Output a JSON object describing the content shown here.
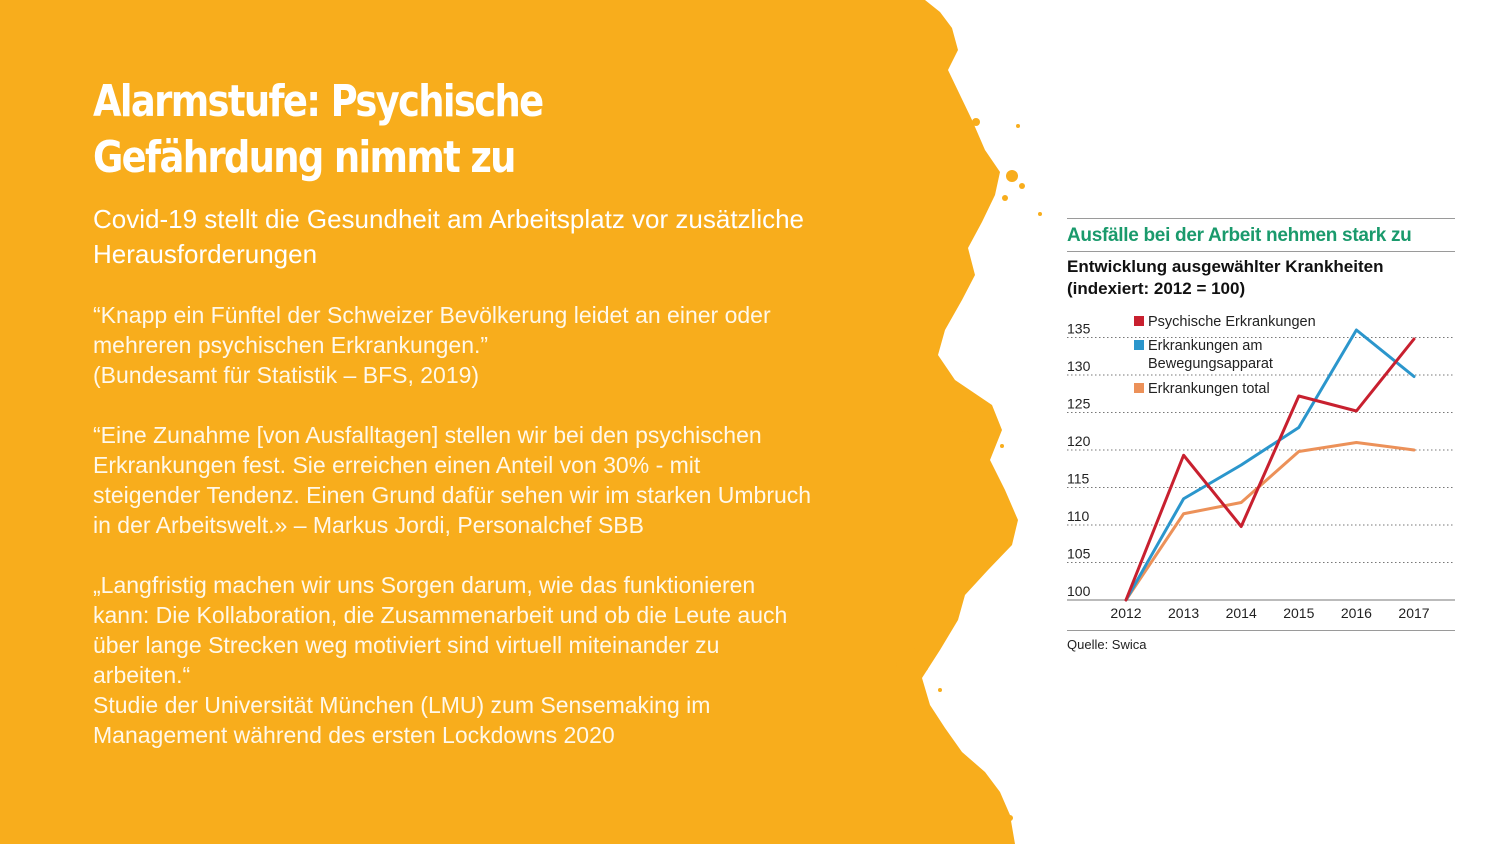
{
  "colors": {
    "panel": "#f8ad1c",
    "heading": "#1a9a6c"
  },
  "left": {
    "title_line1": "Alarmstufe: Psychische",
    "title_line2": "Gefährdung nimmt zu",
    "subtitle": "Covid-19 stellt die Gesundheit am Arbeitsplatz vor zusätzliche Herausforderungen",
    "quote1_text": "“Knapp ein Fünftel der Schweizer Bevölkerung leidet an einer oder mehreren psychischen Erkrankungen.”",
    "quote1_source": "(Bundesamt für Statistik – BFS, 2019)",
    "quote2_text": "“Eine Zunahme [von Ausfalltagen] stellen wir bei den psychischen Erkrankungen fest. Sie erreichen einen Anteil von 30% - mit steigender Tendenz. Einen Grund dafür sehen wir im starken Umbruch in der Arbeitswelt.» – Markus Jordi, Personalchef SBB",
    "quote3_text": "„Langfristig machen wir uns Sorgen darum, wie das funktionieren kann: Die Kollaboration, die Zusammenarbeit und ob die Leute auch über lange Strecken weg motiviert sind virtuell miteinander zu arbeiten.“",
    "quote3_source": "Studie der Universität München (LMU) zum Sensemaking im Management während des ersten Lockdowns 2020"
  },
  "right": {
    "heading": "Ausfälle bei der Arbeit nehmen stark zu",
    "subheading_line1": "Entwicklung ausgewählter Krankheiten",
    "subheading_line2": "(indexiert: 2012 = 100)",
    "source": "Quelle: Swica"
  },
  "chart_data": {
    "type": "line",
    "title": "Entwicklung ausgewählter Krankheiten (indexiert: 2012 = 100)",
    "x": [
      "2012",
      "2013",
      "2014",
      "2015",
      "2016",
      "2017"
    ],
    "y_ticks": [
      100,
      105,
      110,
      115,
      120,
      125,
      130,
      135
    ],
    "ylim": [
      100,
      136
    ],
    "grid": "dotted-horizontal",
    "legend_position": "top-left",
    "series": [
      {
        "name": "Psychische Erkrankungen",
        "color": "#c8202f",
        "values": [
          100,
          119.3,
          109.8,
          127.2,
          125.2,
          134.8
        ]
      },
      {
        "name": "Erkrankungen am Bewegungsapparat",
        "color": "#2b96cc",
        "values": [
          100,
          113.5,
          118,
          123,
          136,
          129.8
        ]
      },
      {
        "name": "Erkrankungen total",
        "color": "#ec9159",
        "values": [
          100,
          111.5,
          113,
          119.8,
          121,
          120
        ]
      }
    ],
    "legend_lines": [
      [
        "Psychische Erkrankungen"
      ],
      [
        "Erkrankungen am",
        "Bewegungsapparat"
      ],
      [
        "Erkrankungen total"
      ]
    ]
  }
}
